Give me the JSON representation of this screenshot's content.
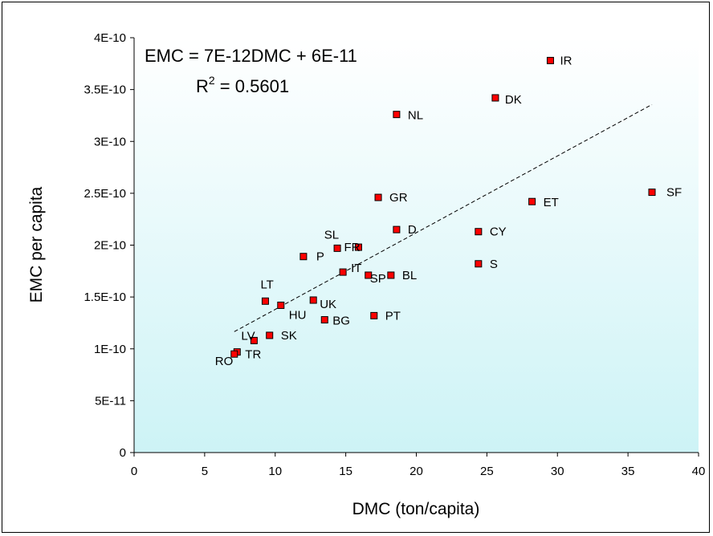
{
  "chart_data": {
    "type": "scatter",
    "xlabel": "DMC (ton/capita)",
    "ylabel": "EMC per capita",
    "xlim": [
      0,
      40
    ],
    "ylim": [
      0,
      4e-10
    ],
    "x_ticks": [
      "0",
      "5",
      "10",
      "15",
      "20",
      "25",
      "30",
      "35",
      "40"
    ],
    "y_ticks": [
      "0",
      "5E-11",
      "1E-10",
      "1.5E-10",
      "2E-10",
      "2.5E-10",
      "3E-10",
      "3.5E-10",
      "4E-10"
    ],
    "equation": "EMC = 7E-12DMC + 6E-11",
    "r2_prefix": "R",
    "r2_sup": "2",
    "r2_value": " = 0.5601",
    "trendline": {
      "slope": 7.4e-12,
      "intercept": 6.4e-11,
      "x_start": 7.1,
      "x_end": 36.7
    },
    "marker_color": "#ff0000",
    "background_gradient": [
      "#ffffff",
      "#cdf3f6"
    ],
    "points": [
      {
        "label": "IR",
        "x": 29.5,
        "y": 3.78e-10
      },
      {
        "label": "DK",
        "x": 25.6,
        "y": 3.42e-10
      },
      {
        "label": "NL",
        "x": 18.6,
        "y": 3.26e-10
      },
      {
        "label": "SF",
        "x": 36.7,
        "y": 2.51e-10
      },
      {
        "label": "GR",
        "x": 17.3,
        "y": 2.46e-10
      },
      {
        "label": "ET",
        "x": 28.2,
        "y": 2.42e-10
      },
      {
        "label": "D",
        "x": 18.6,
        "y": 2.15e-10
      },
      {
        "label": "CY",
        "x": 24.4,
        "y": 2.13e-10
      },
      {
        "label": "SL",
        "x": 14.4,
        "y": 1.97e-10
      },
      {
        "label": "FR",
        "x": 15.9,
        "y": 1.98e-10
      },
      {
        "label": "P",
        "x": 12.0,
        "y": 1.89e-10
      },
      {
        "label": "S",
        "x": 24.4,
        "y": 1.82e-10
      },
      {
        "label": "IT",
        "x": 14.8,
        "y": 1.74e-10
      },
      {
        "label": "SP",
        "x": 16.6,
        "y": 1.71e-10
      },
      {
        "label": "BL",
        "x": 18.2,
        "y": 1.71e-10
      },
      {
        "label": "LT",
        "x": 9.3,
        "y": 1.46e-10
      },
      {
        "label": "HU",
        "x": 10.4,
        "y": 1.42e-10
      },
      {
        "label": "UK",
        "x": 12.7,
        "y": 1.47e-10
      },
      {
        "label": "PT",
        "x": 17.0,
        "y": 1.32e-10
      },
      {
        "label": "BG",
        "x": 13.5,
        "y": 1.28e-10
      },
      {
        "label": "SK",
        "x": 9.6,
        "y": 1.13e-10
      },
      {
        "label": "LV",
        "x": 8.5,
        "y": 1.08e-10
      },
      {
        "label": "TR",
        "x": 7.3,
        "y": 9.7e-11
      },
      {
        "label": "RO",
        "x": 7.1,
        "y": 9.5e-11
      }
    ]
  }
}
